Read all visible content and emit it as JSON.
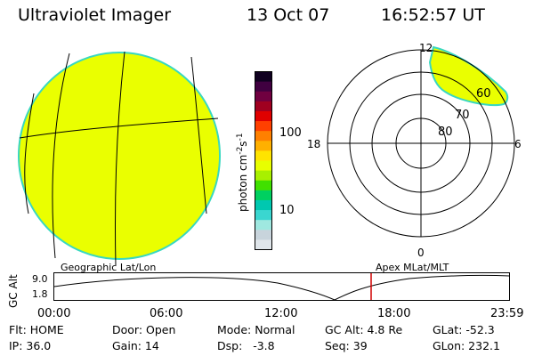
{
  "header": {
    "instrument": "Ultraviolet Imager",
    "date": "13 Oct 07",
    "time": "16:52:57 UT"
  },
  "colorbar": {
    "unit_label": "photon cm",
    "unit_sup1": "-2",
    "unit_mid": "s",
    "unit_sup2": "-1",
    "tick_high": "100",
    "tick_low": "10",
    "colors": [
      "#dfe5ea",
      "#c8d4dc",
      "#9fe8e0",
      "#3ad6d0",
      "#00c8b0",
      "#00d060",
      "#40e000",
      "#a8f000",
      "#e8ff00",
      "#ffe400",
      "#ffb000",
      "#ff8000",
      "#ff4000",
      "#e00000",
      "#a00020",
      "#700040",
      "#400040",
      "#100020"
    ]
  },
  "polar": {
    "mlt_top": "12",
    "mlt_right": "6",
    "mlt_bottom": "0",
    "mlt_left": "18",
    "lat_60": "60",
    "lat_70": "70",
    "lat_80": "80"
  },
  "orbit_plot": {
    "y_axis_label": "GC Alt",
    "y_tick": "9.0",
    "y_tick_low": "1.8",
    "left_title": "Geographic Lat/Lon",
    "right_title": "Apex MLat/MLT",
    "x_ticks": [
      "00:00",
      "06:00",
      "12:00",
      "18:00",
      "23:59"
    ],
    "marker_color": "#d00000"
  },
  "info": {
    "filter": "Flt: HOME",
    "ip": "IP: 36.0",
    "door": "Door: Open",
    "gain": "Gain: 14",
    "mode": "Mode: Normal",
    "dsp": "Dsp:   -3.8",
    "gc_alt": "GC Alt: 4.8 Re",
    "seq": "Seq: 39",
    "glat": "GLat: -52.3",
    "glon": "GLon: 232.1"
  },
  "image_colors": {
    "fill": "#eaff00",
    "rim": "#38d8c0"
  }
}
